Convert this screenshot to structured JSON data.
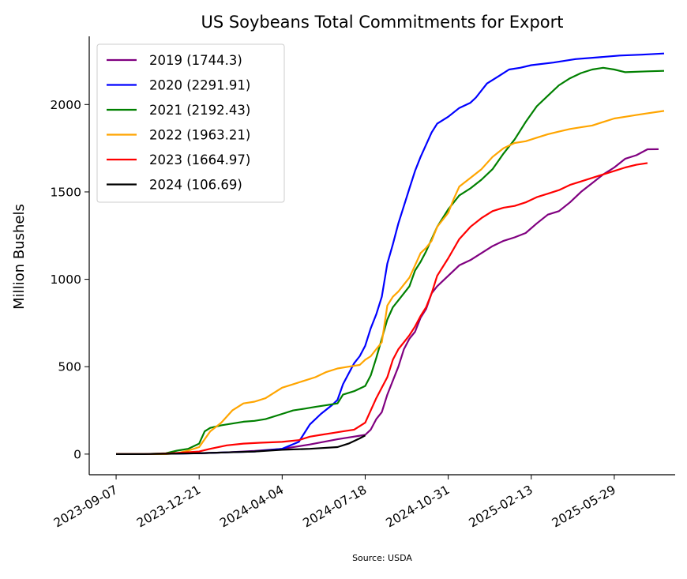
{
  "chart_data": {
    "type": "line",
    "title": "US Soybeans Total Commitments for Export",
    "xlabel": "",
    "ylabel": "Million Bushels",
    "source": "Source: USDA",
    "x_tick_labels": [
      "2023-09-07",
      "2023-12-21",
      "2024-04-04",
      "2024-07-18",
      "2024-10-31",
      "2025-02-13",
      "2025-05-29"
    ],
    "x_ticks": [
      "2023-09-07",
      "2023-12-21",
      "2024-04-04",
      "2024-07-18",
      "2024-10-31",
      "2025-02-13",
      "2025-05-29"
    ],
    "xlim": [
      "2023-08-04",
      "2025-08-14"
    ],
    "y_ticks": [
      0,
      500,
      1000,
      1500,
      2000
    ],
    "ylim": [
      -118,
      2390
    ],
    "grid": false,
    "legend_position": "top-left",
    "series": [
      {
        "name": "2019 (1744.3)",
        "color": "#800080",
        "points": [
          [
            "2023-09-07",
            0
          ],
          [
            "2023-10-12",
            0
          ],
          [
            "2023-11-16",
            3
          ],
          [
            "2023-12-21",
            5
          ],
          [
            "2024-01-25",
            10
          ],
          [
            "2024-02-29",
            18
          ],
          [
            "2024-04-04",
            30
          ],
          [
            "2024-05-09",
            55
          ],
          [
            "2024-06-13",
            85
          ],
          [
            "2024-07-18",
            110
          ],
          [
            "2024-07-25",
            140
          ],
          [
            "2024-08-01",
            200
          ],
          [
            "2024-08-08",
            240
          ],
          [
            "2024-08-15",
            340
          ],
          [
            "2024-08-22",
            420
          ],
          [
            "2024-08-29",
            500
          ],
          [
            "2024-09-05",
            600
          ],
          [
            "2024-09-12",
            660
          ],
          [
            "2024-09-19",
            700
          ],
          [
            "2024-09-26",
            780
          ],
          [
            "2024-10-03",
            830
          ],
          [
            "2024-10-10",
            920
          ],
          [
            "2024-10-17",
            960
          ],
          [
            "2024-10-31",
            1020
          ],
          [
            "2024-11-14",
            1080
          ],
          [
            "2024-11-28",
            1110
          ],
          [
            "2024-12-12",
            1150
          ],
          [
            "2024-12-26",
            1190
          ],
          [
            "2025-01-09",
            1220
          ],
          [
            "2025-01-23",
            1240
          ],
          [
            "2025-02-06",
            1265
          ],
          [
            "2025-02-20",
            1320
          ],
          [
            "2025-03-06",
            1370
          ],
          [
            "2025-03-20",
            1390
          ],
          [
            "2025-04-03",
            1440
          ],
          [
            "2025-04-17",
            1500
          ],
          [
            "2025-05-01",
            1550
          ],
          [
            "2025-05-15",
            1600
          ],
          [
            "2025-05-29",
            1640
          ],
          [
            "2025-06-12",
            1690
          ],
          [
            "2025-06-26",
            1710
          ],
          [
            "2025-07-10",
            1744
          ],
          [
            "2025-07-24",
            1744.3
          ]
        ]
      },
      {
        "name": "2020 (2291.91)",
        "color": "#0000ff",
        "points": [
          [
            "2023-09-07",
            0
          ],
          [
            "2023-10-12",
            0
          ],
          [
            "2023-11-16",
            2
          ],
          [
            "2023-12-21",
            5
          ],
          [
            "2024-01-25",
            10
          ],
          [
            "2024-02-29",
            15
          ],
          [
            "2024-04-04",
            30
          ],
          [
            "2024-04-25",
            70
          ],
          [
            "2024-05-09",
            170
          ],
          [
            "2024-05-23",
            230
          ],
          [
            "2024-06-06",
            280
          ],
          [
            "2024-06-13",
            310
          ],
          [
            "2024-06-20",
            400
          ],
          [
            "2024-06-27",
            460
          ],
          [
            "2024-07-04",
            520
          ],
          [
            "2024-07-11",
            560
          ],
          [
            "2024-07-18",
            620
          ],
          [
            "2024-07-25",
            720
          ],
          [
            "2024-08-01",
            800
          ],
          [
            "2024-08-08",
            900
          ],
          [
            "2024-08-15",
            1090
          ],
          [
            "2024-08-22",
            1200
          ],
          [
            "2024-08-29",
            1320
          ],
          [
            "2024-09-05",
            1420
          ],
          [
            "2024-09-12",
            1520
          ],
          [
            "2024-09-19",
            1620
          ],
          [
            "2024-09-26",
            1700
          ],
          [
            "2024-10-03",
            1770
          ],
          [
            "2024-10-10",
            1840
          ],
          [
            "2024-10-17",
            1890
          ],
          [
            "2024-10-31",
            1930
          ],
          [
            "2024-11-14",
            1980
          ],
          [
            "2024-11-28",
            2010
          ],
          [
            "2024-12-05",
            2040
          ],
          [
            "2024-12-19",
            2120
          ],
          [
            "2025-01-02",
            2160
          ],
          [
            "2025-01-16",
            2200
          ],
          [
            "2025-01-30",
            2210
          ],
          [
            "2025-02-13",
            2225
          ],
          [
            "2025-03-13",
            2240
          ],
          [
            "2025-04-10",
            2260
          ],
          [
            "2025-05-08",
            2270
          ],
          [
            "2025-06-05",
            2280
          ],
          [
            "2025-07-03",
            2285
          ],
          [
            "2025-07-31",
            2291.91
          ]
        ]
      },
      {
        "name": "2021 (2192.43)",
        "color": "#008000",
        "points": [
          [
            "2023-09-07",
            0
          ],
          [
            "2023-10-12",
            0
          ],
          [
            "2023-11-09",
            5
          ],
          [
            "2023-11-23",
            20
          ],
          [
            "2023-12-07",
            30
          ],
          [
            "2023-12-21",
            60
          ],
          [
            "2023-12-28",
            130
          ],
          [
            "2024-01-04",
            150
          ],
          [
            "2024-01-18",
            165
          ],
          [
            "2024-02-01",
            175
          ],
          [
            "2024-02-15",
            185
          ],
          [
            "2024-02-29",
            190
          ],
          [
            "2024-03-14",
            200
          ],
          [
            "2024-04-04",
            230
          ],
          [
            "2024-04-18",
            250
          ],
          [
            "2024-05-02",
            260
          ],
          [
            "2024-05-16",
            270
          ],
          [
            "2024-05-30",
            280
          ],
          [
            "2024-06-13",
            290
          ],
          [
            "2024-06-20",
            340
          ],
          [
            "2024-07-04",
            360
          ],
          [
            "2024-07-18",
            390
          ],
          [
            "2024-07-25",
            450
          ],
          [
            "2024-08-01",
            550
          ],
          [
            "2024-08-08",
            660
          ],
          [
            "2024-08-15",
            770
          ],
          [
            "2024-08-22",
            840
          ],
          [
            "2024-08-29",
            880
          ],
          [
            "2024-09-05",
            920
          ],
          [
            "2024-09-12",
            960
          ],
          [
            "2024-09-19",
            1050
          ],
          [
            "2024-09-26",
            1100
          ],
          [
            "2024-10-03",
            1160
          ],
          [
            "2024-10-10",
            1230
          ],
          [
            "2024-10-17",
            1300
          ],
          [
            "2024-10-31",
            1400
          ],
          [
            "2024-11-14",
            1480
          ],
          [
            "2024-11-28",
            1520
          ],
          [
            "2024-12-12",
            1570
          ],
          [
            "2024-12-26",
            1630
          ],
          [
            "2025-01-09",
            1720
          ],
          [
            "2025-01-23",
            1800
          ],
          [
            "2025-02-06",
            1900
          ],
          [
            "2025-02-20",
            1990
          ],
          [
            "2025-03-06",
            2050
          ],
          [
            "2025-03-20",
            2110
          ],
          [
            "2025-04-03",
            2150
          ],
          [
            "2025-04-17",
            2180
          ],
          [
            "2025-05-01",
            2200
          ],
          [
            "2025-05-15",
            2210
          ],
          [
            "2025-05-29",
            2200
          ],
          [
            "2025-06-12",
            2185
          ],
          [
            "2025-07-10",
            2190
          ],
          [
            "2025-07-31",
            2192.43
          ]
        ]
      },
      {
        "name": "2022 (1963.21)",
        "color": "#ffa500",
        "points": [
          [
            "2023-09-07",
            0
          ],
          [
            "2023-11-09",
            0
          ],
          [
            "2023-11-23",
            5
          ],
          [
            "2023-12-07",
            20
          ],
          [
            "2023-12-21",
            40
          ],
          [
            "2024-01-04",
            130
          ],
          [
            "2024-01-18",
            180
          ],
          [
            "2024-02-01",
            250
          ],
          [
            "2024-02-15",
            290
          ],
          [
            "2024-02-29",
            300
          ],
          [
            "2024-03-14",
            320
          ],
          [
            "2024-03-28",
            360
          ],
          [
            "2024-04-04",
            380
          ],
          [
            "2024-04-18",
            400
          ],
          [
            "2024-05-02",
            420
          ],
          [
            "2024-05-16",
            440
          ],
          [
            "2024-05-30",
            470
          ],
          [
            "2024-06-13",
            490
          ],
          [
            "2024-06-27",
            500
          ],
          [
            "2024-07-11",
            510
          ],
          [
            "2024-07-18",
            540
          ],
          [
            "2024-07-25",
            560
          ],
          [
            "2024-08-01",
            600
          ],
          [
            "2024-08-08",
            640
          ],
          [
            "2024-08-15",
            850
          ],
          [
            "2024-08-22",
            900
          ],
          [
            "2024-08-29",
            930
          ],
          [
            "2024-09-05",
            970
          ],
          [
            "2024-09-12",
            1010
          ],
          [
            "2024-09-19",
            1080
          ],
          [
            "2024-09-26",
            1150
          ],
          [
            "2024-10-03",
            1180
          ],
          [
            "2024-10-10",
            1220
          ],
          [
            "2024-10-17",
            1300
          ],
          [
            "2024-10-31",
            1380
          ],
          [
            "2024-11-07",
            1460
          ],
          [
            "2024-11-14",
            1530
          ],
          [
            "2024-11-28",
            1580
          ],
          [
            "2024-12-12",
            1630
          ],
          [
            "2024-12-26",
            1700
          ],
          [
            "2025-01-09",
            1750
          ],
          [
            "2025-01-23",
            1780
          ],
          [
            "2025-02-06",
            1790
          ],
          [
            "2025-02-20",
            1810
          ],
          [
            "2025-03-06",
            1830
          ],
          [
            "2025-03-20",
            1845
          ],
          [
            "2025-04-03",
            1860
          ],
          [
            "2025-04-17",
            1870
          ],
          [
            "2025-05-01",
            1880
          ],
          [
            "2025-05-15",
            1900
          ],
          [
            "2025-05-29",
            1920
          ],
          [
            "2025-06-12",
            1930
          ],
          [
            "2025-06-26",
            1940
          ],
          [
            "2025-07-10",
            1950
          ],
          [
            "2025-07-31",
            1963.21
          ]
        ]
      },
      {
        "name": "2023 (1664.97)",
        "color": "#ff0000",
        "points": [
          [
            "2023-09-07",
            0
          ],
          [
            "2023-10-12",
            0
          ],
          [
            "2023-11-16",
            5
          ],
          [
            "2023-12-21",
            15
          ],
          [
            "2024-01-04",
            30
          ],
          [
            "2024-01-25",
            50
          ],
          [
            "2024-02-15",
            60
          ],
          [
            "2024-03-07",
            65
          ],
          [
            "2024-04-04",
            70
          ],
          [
            "2024-04-25",
            80
          ],
          [
            "2024-05-09",
            100
          ],
          [
            "2024-05-23",
            110
          ],
          [
            "2024-06-06",
            120
          ],
          [
            "2024-06-20",
            130
          ],
          [
            "2024-07-04",
            140
          ],
          [
            "2024-07-18",
            180
          ],
          [
            "2024-07-25",
            250
          ],
          [
            "2024-08-01",
            320
          ],
          [
            "2024-08-08",
            380
          ],
          [
            "2024-08-15",
            440
          ],
          [
            "2024-08-22",
            540
          ],
          [
            "2024-08-29",
            600
          ],
          [
            "2024-09-05",
            640
          ],
          [
            "2024-09-12",
            680
          ],
          [
            "2024-09-19",
            730
          ],
          [
            "2024-09-26",
            790
          ],
          [
            "2024-10-03",
            840
          ],
          [
            "2024-10-10",
            920
          ],
          [
            "2024-10-17",
            1020
          ],
          [
            "2024-10-31",
            1120
          ],
          [
            "2024-11-14",
            1230
          ],
          [
            "2024-11-28",
            1300
          ],
          [
            "2024-12-12",
            1350
          ],
          [
            "2024-12-26",
            1390
          ],
          [
            "2025-01-09",
            1410
          ],
          [
            "2025-01-23",
            1420
          ],
          [
            "2025-02-06",
            1440
          ],
          [
            "2025-02-20",
            1470
          ],
          [
            "2025-03-06",
            1490
          ],
          [
            "2025-03-20",
            1510
          ],
          [
            "2025-04-03",
            1540
          ],
          [
            "2025-04-17",
            1560
          ],
          [
            "2025-05-01",
            1580
          ],
          [
            "2025-05-15",
            1600
          ],
          [
            "2025-05-29",
            1620
          ],
          [
            "2025-06-12",
            1640
          ],
          [
            "2025-06-26",
            1655
          ],
          [
            "2025-07-10",
            1664.97
          ]
        ]
      },
      {
        "name": "2024 (106.69)",
        "color": "#000000",
        "points": [
          [
            "2023-09-07",
            0
          ],
          [
            "2023-10-12",
            0
          ],
          [
            "2023-11-16",
            2
          ],
          [
            "2023-12-21",
            5
          ],
          [
            "2024-01-25",
            10
          ],
          [
            "2024-02-29",
            15
          ],
          [
            "2024-04-04",
            25
          ],
          [
            "2024-05-09",
            30
          ],
          [
            "2024-06-13",
            40
          ],
          [
            "2024-06-27",
            60
          ],
          [
            "2024-07-11",
            90
          ],
          [
            "2024-07-18",
            106.69
          ]
        ]
      }
    ]
  }
}
